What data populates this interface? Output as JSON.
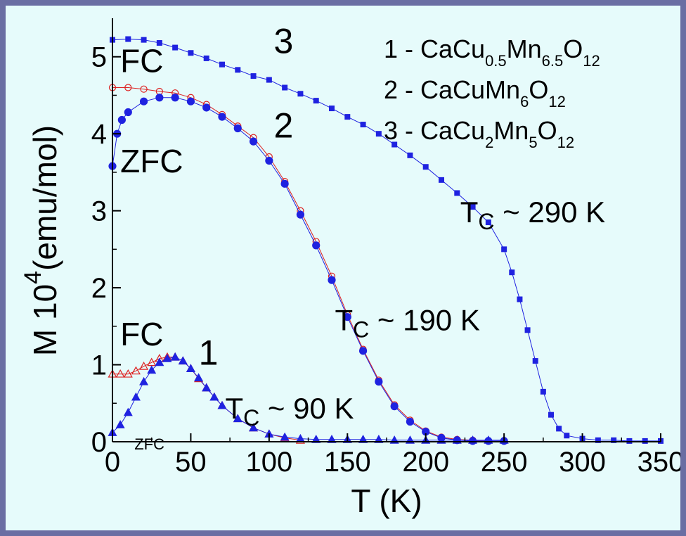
{
  "chart_data": {
    "type": "scatter",
    "xlabel": "T (K)",
    "ylabel": {
      "pre": "M 10",
      "sup": "4",
      "post": "(emu/mol)"
    },
    "xlim": [
      0,
      350
    ],
    "ylim": [
      0,
      5.5
    ],
    "xticks": [
      0,
      50,
      100,
      150,
      200,
      250,
      300,
      350
    ],
    "yticks": [
      0,
      1,
      2,
      3,
      4,
      5
    ],
    "grid": false,
    "colors": {
      "fc": "#dd2222",
      "zfc": "#1f22e0",
      "sample3": "#1f22e0",
      "axis": "#000000"
    },
    "legend": {
      "placement": "top-right",
      "entries": [
        {
          "id": "1",
          "sep": " - ",
          "parts": [
            [
              "CaCu",
              ""
            ],
            [
              "0.5",
              "sub"
            ],
            [
              "Mn",
              ""
            ],
            [
              "6.5",
              "sub"
            ],
            [
              "O",
              ""
            ],
            [
              "12",
              "sub"
            ]
          ]
        },
        {
          "id": "2",
          "sep": " - ",
          "parts": [
            [
              "CaCuMn",
              ""
            ],
            [
              "6",
              "sub"
            ],
            [
              "O",
              ""
            ],
            [
              "12",
              "sub"
            ]
          ]
        },
        {
          "id": "3",
          "sep": " - ",
          "parts": [
            [
              "CaCu",
              ""
            ],
            [
              "2",
              "sub"
            ],
            [
              "Mn",
              ""
            ],
            [
              "5",
              "sub"
            ],
            [
              "O",
              ""
            ],
            [
              "12",
              "sub"
            ]
          ]
        }
      ]
    },
    "annotations": [
      {
        "id": "curve-3-number",
        "text": "3",
        "x": 103,
        "y": 5.05,
        "size": 50
      },
      {
        "id": "curve-2-number",
        "text": "2",
        "x": 103,
        "y": 3.95,
        "size": 50
      },
      {
        "id": "curve-1-number",
        "text": "1",
        "x": 55,
        "y": 1.0,
        "size": 50
      },
      {
        "id": "fc-label-2",
        "text": "FC",
        "x": 5,
        "y": 4.8,
        "size": 46
      },
      {
        "id": "zfc-label-2",
        "text": "ZFC",
        "x": 5,
        "y": 3.5,
        "size": 46
      },
      {
        "id": "fc-label-1",
        "text": "FC",
        "x": 5,
        "y": 1.25,
        "size": 46
      },
      {
        "id": "zfc-label-1",
        "text": "ZFC",
        "x": 14,
        "y": -0.1,
        "size": 22
      }
    ],
    "tc_labels": [
      {
        "id": "tc-290",
        "main": "T",
        "sub": "C",
        "rest": " ~ 290 K",
        "x": 222,
        "y": 2.85
      },
      {
        "id": "tc-190",
        "main": "T",
        "sub": "C",
        "rest": " ~ 190 K",
        "x": 142,
        "y": 1.45
      },
      {
        "id": "tc-90",
        "main": "T",
        "sub": "C",
        "rest": " ~ 90 K",
        "x": 72,
        "y": 0.3
      }
    ],
    "series": [
      {
        "id": "3",
        "marker": "square",
        "filled": true,
        "color": "#1f22e0",
        "x": [
          0,
          10,
          20,
          30,
          40,
          50,
          60,
          70,
          80,
          90,
          100,
          110,
          120,
          130,
          140,
          150,
          160,
          170,
          180,
          190,
          200,
          210,
          220,
          230,
          240,
          250,
          255,
          260,
          265,
          270,
          275,
          280,
          285,
          290,
          300,
          310,
          320,
          330,
          340,
          350
        ],
        "y": [
          5.22,
          5.23,
          5.22,
          5.18,
          5.12,
          5.05,
          4.98,
          4.9,
          4.83,
          4.75,
          4.7,
          4.6,
          4.52,
          4.43,
          4.33,
          4.22,
          4.12,
          4.0,
          3.86,
          3.72,
          3.57,
          3.4,
          3.23,
          3.05,
          2.85,
          2.5,
          2.2,
          1.85,
          1.45,
          1.05,
          0.65,
          0.35,
          0.17,
          0.08,
          0.04,
          0.02,
          0.02,
          0.01,
          0.01,
          0.01
        ]
      },
      {
        "id": "2-fc",
        "marker": "circle",
        "filled": false,
        "color": "#dd2222",
        "x": [
          0,
          10,
          20,
          30,
          40,
          50,
          60,
          70,
          80,
          90,
          100,
          110,
          120,
          130,
          140,
          150,
          160,
          170,
          180,
          190,
          200,
          210,
          220,
          230,
          240,
          250
        ],
        "y": [
          4.6,
          4.6,
          4.58,
          4.55,
          4.53,
          4.47,
          4.38,
          4.25,
          4.1,
          3.95,
          3.7,
          3.38,
          3.0,
          2.6,
          2.15,
          1.65,
          1.2,
          0.8,
          0.48,
          0.28,
          0.14,
          0.06,
          0.03,
          0.02,
          0.01,
          0.01
        ]
      },
      {
        "id": "2-zfc",
        "marker": "circle",
        "filled": true,
        "color": "#1f22e0",
        "x": [
          0,
          3,
          6,
          10,
          20,
          30,
          40,
          50,
          60,
          70,
          80,
          90,
          100,
          110,
          120,
          130,
          140,
          150,
          160,
          170,
          180,
          190,
          200,
          210,
          220,
          230,
          240,
          250
        ],
        "y": [
          3.58,
          4.0,
          4.18,
          4.28,
          4.42,
          4.47,
          4.47,
          4.42,
          4.34,
          4.22,
          4.07,
          3.9,
          3.65,
          3.35,
          2.95,
          2.55,
          2.1,
          1.62,
          1.18,
          0.78,
          0.46,
          0.26,
          0.13,
          0.05,
          0.02,
          0.01,
          0.01,
          0.01
        ]
      },
      {
        "id": "1-fc",
        "marker": "triangle",
        "filled": false,
        "color": "#dd2222",
        "x": [
          0,
          5,
          10,
          15,
          20,
          25,
          30,
          35,
          40,
          45,
          50,
          55,
          60,
          65,
          70,
          80,
          90,
          100,
          110,
          120
        ],
        "y": [
          0.88,
          0.88,
          0.88,
          0.92,
          0.98,
          1.03,
          1.08,
          1.1,
          1.1,
          1.05,
          0.95,
          0.82,
          0.7,
          0.58,
          0.47,
          0.3,
          0.18,
          0.1,
          0.05,
          0.02
        ]
      },
      {
        "id": "1-zfc",
        "marker": "triangle",
        "filled": true,
        "color": "#1f22e0",
        "x": [
          0,
          5,
          10,
          15,
          20,
          25,
          30,
          35,
          40,
          45,
          50,
          55,
          60,
          65,
          70,
          80,
          90,
          100,
          110,
          120,
          130,
          140,
          150,
          160,
          170,
          180,
          190,
          200,
          210,
          220,
          230,
          240,
          250
        ],
        "y": [
          0.12,
          0.22,
          0.38,
          0.58,
          0.78,
          0.93,
          1.03,
          1.08,
          1.1,
          1.05,
          0.95,
          0.83,
          0.7,
          0.58,
          0.47,
          0.3,
          0.18,
          0.1,
          0.06,
          0.04,
          0.03,
          0.03,
          0.03,
          0.03,
          0.03,
          0.02,
          0.02,
          0.02,
          0.02,
          0.02,
          0.02,
          0.02,
          0.02
        ]
      }
    ]
  }
}
